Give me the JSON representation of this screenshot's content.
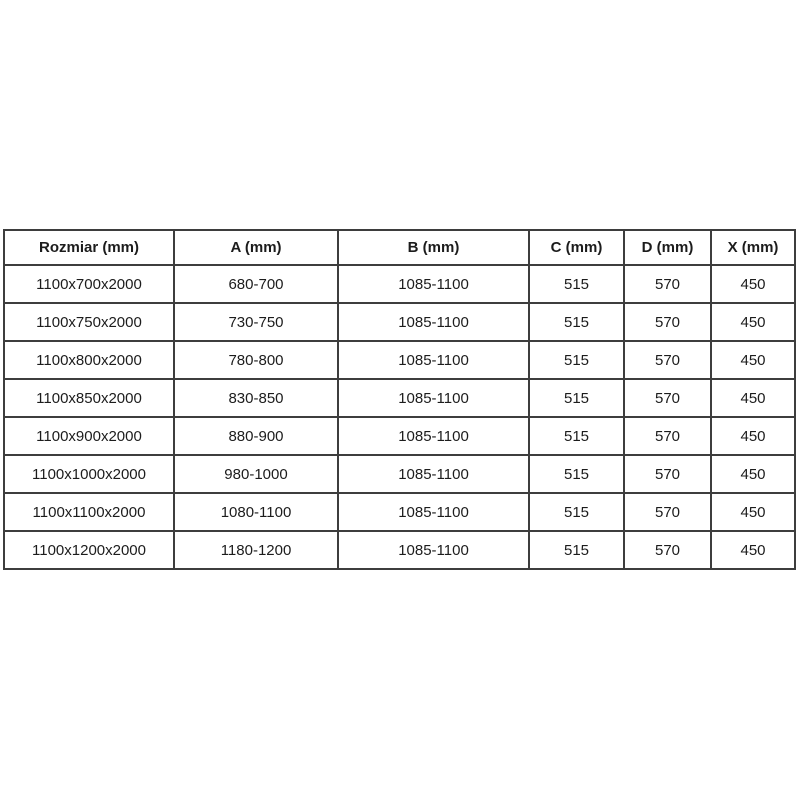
{
  "table": {
    "headers": [
      "Rozmiar (mm)",
      "A (mm)",
      "B (mm)",
      "C (mm)",
      "D (mm)",
      "X (mm)"
    ],
    "rows": [
      [
        "1100x700x2000",
        "680-700",
        "1085-1100",
        "515",
        "570",
        "450"
      ],
      [
        "1100x750x2000",
        "730-750",
        "1085-1100",
        "515",
        "570",
        "450"
      ],
      [
        "1100x800x2000",
        "780-800",
        "1085-1100",
        "515",
        "570",
        "450"
      ],
      [
        "1100x850x2000",
        "830-850",
        "1085-1100",
        "515",
        "570",
        "450"
      ],
      [
        "1100x900x2000",
        "880-900",
        "1085-1100",
        "515",
        "570",
        "450"
      ],
      [
        "1100x1000x2000",
        "980-1000",
        "1085-1100",
        "515",
        "570",
        "450"
      ],
      [
        "1100x1100x2000",
        "1080-1100",
        "1085-1100",
        "515",
        "570",
        "450"
      ],
      [
        "1100x1200x2000",
        "1180-1200",
        "1085-1100",
        "515",
        "570",
        "450"
      ]
    ],
    "colors": {
      "border": "#3d3d3d",
      "text": "#1c1c1c",
      "background": "#ffffff"
    }
  }
}
